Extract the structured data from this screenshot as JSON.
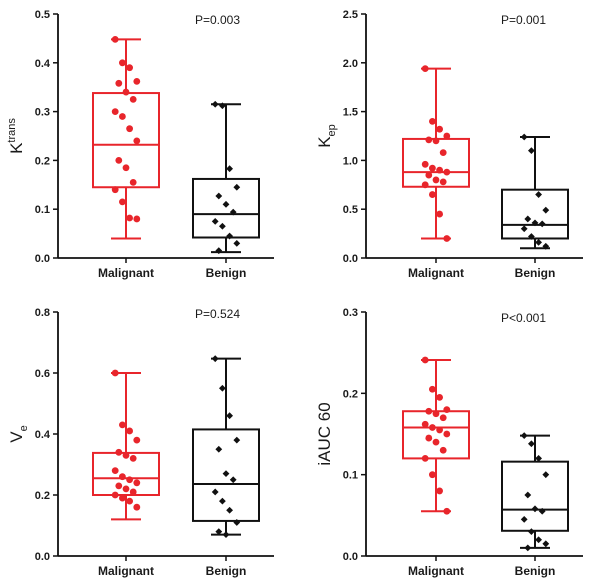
{
  "colors": {
    "malignant": "#e8252b",
    "benign": "#111111",
    "axis": "#111111"
  },
  "chart_data": [
    {
      "type": "box",
      "ylabel_main": "K",
      "ylabel_sup": "trans",
      "ylabel_sub": "",
      "pvalue": "P=0.003",
      "ylim": [
        0,
        0.5
      ],
      "yticks": [
        "0.0",
        "0.1",
        "0.2",
        "0.3",
        "0.4",
        "0.5"
      ],
      "ytick_values": [
        0,
        0.1,
        0.2,
        0.3,
        0.4,
        0.5
      ],
      "categories": [
        "Malignant",
        "Benign"
      ],
      "series": [
        {
          "name": "Malignant",
          "color": "malignant",
          "box": {
            "min": 0.04,
            "q1": 0.145,
            "median": 0.232,
            "q3": 0.338,
            "max": 0.448
          },
          "points": [
            0.448,
            0.4,
            0.39,
            0.362,
            0.358,
            0.34,
            0.325,
            0.3,
            0.29,
            0.265,
            0.24,
            0.2,
            0.185,
            0.155,
            0.14,
            0.115,
            0.082,
            0.08
          ]
        },
        {
          "name": "Benign",
          "color": "benign",
          "box": {
            "min": 0.012,
            "q1": 0.042,
            "median": 0.09,
            "q3": 0.162,
            "max": 0.315
          },
          "points": [
            0.315,
            0.312,
            0.183,
            0.145,
            0.127,
            0.11,
            0.094,
            0.075,
            0.065,
            0.045,
            0.03,
            0.015
          ]
        }
      ]
    },
    {
      "type": "box",
      "ylabel_main": "K",
      "ylabel_sup": "",
      "ylabel_sub": "ep",
      "pvalue": "P=0.001",
      "ylim": [
        0,
        2.5
      ],
      "yticks": [
        "0.0",
        "0.5",
        "1.0",
        "1.5",
        "2.0",
        "2.5"
      ],
      "ytick_values": [
        0,
        0.5,
        1.0,
        1.5,
        2.0,
        2.5
      ],
      "categories": [
        "Malignant",
        "Benign"
      ],
      "series": [
        {
          "name": "Malignant",
          "color": "malignant",
          "box": {
            "min": 0.2,
            "q1": 0.73,
            "median": 0.88,
            "q3": 1.22,
            "max": 1.94
          },
          "points": [
            1.94,
            1.4,
            1.32,
            1.25,
            1.21,
            1.2,
            1.08,
            0.96,
            0.92,
            0.9,
            0.88,
            0.85,
            0.8,
            0.78,
            0.75,
            0.65,
            0.45,
            0.2
          ]
        },
        {
          "name": "Benign",
          "color": "benign",
          "box": {
            "min": 0.1,
            "q1": 0.2,
            "median": 0.34,
            "q3": 0.7,
            "max": 1.24
          },
          "points": [
            1.24,
            1.1,
            0.65,
            0.49,
            0.4,
            0.36,
            0.35,
            0.3,
            0.22,
            0.16,
            0.12
          ]
        }
      ]
    },
    {
      "type": "box",
      "ylabel_main": "V",
      "ylabel_sup": "",
      "ylabel_sub": "e",
      "pvalue": "P=0.524",
      "ylim": [
        0,
        0.8
      ],
      "yticks": [
        "0.0",
        "0.2",
        "0.4",
        "0.6",
        "0.8"
      ],
      "ytick_values": [
        0,
        0.2,
        0.4,
        0.6,
        0.8
      ],
      "categories": [
        "Malignant",
        "Benign"
      ],
      "series": [
        {
          "name": "Malignant",
          "color": "malignant",
          "box": {
            "min": 0.12,
            "q1": 0.2,
            "median": 0.255,
            "q3": 0.338,
            "max": 0.6
          },
          "points": [
            0.6,
            0.43,
            0.41,
            0.38,
            0.34,
            0.33,
            0.32,
            0.28,
            0.26,
            0.25,
            0.24,
            0.23,
            0.22,
            0.21,
            0.2,
            0.19,
            0.18,
            0.16
          ]
        },
        {
          "name": "Benign",
          "color": "benign",
          "box": {
            "min": 0.07,
            "q1": 0.115,
            "median": 0.236,
            "q3": 0.415,
            "max": 0.647
          },
          "points": [
            0.647,
            0.55,
            0.46,
            0.38,
            0.35,
            0.27,
            0.25,
            0.21,
            0.18,
            0.15,
            0.11,
            0.08,
            0.07
          ]
        }
      ]
    },
    {
      "type": "box",
      "ylabel_main": "iAUC 60",
      "ylabel_sup": "",
      "ylabel_sub": "",
      "pvalue": "P<0.001",
      "ylim": [
        0,
        0.3
      ],
      "yticks": [
        "0.0",
        "0.1",
        "0.2",
        "0.3"
      ],
      "ytick_values": [
        0,
        0.1,
        0.2,
        0.3
      ],
      "categories": [
        "Malignant",
        "Benign"
      ],
      "series": [
        {
          "name": "Malignant",
          "color": "malignant",
          "box": {
            "min": 0.055,
            "q1": 0.12,
            "median": 0.158,
            "q3": 0.178,
            "max": 0.241
          },
          "points": [
            0.241,
            0.205,
            0.195,
            0.18,
            0.178,
            0.175,
            0.17,
            0.162,
            0.158,
            0.155,
            0.15,
            0.145,
            0.14,
            0.13,
            0.12,
            0.1,
            0.08,
            0.055
          ]
        },
        {
          "name": "Benign",
          "color": "benign",
          "box": {
            "min": 0.01,
            "q1": 0.031,
            "median": 0.057,
            "q3": 0.116,
            "max": 0.148
          },
          "points": [
            0.148,
            0.138,
            0.12,
            0.1,
            0.075,
            0.058,
            0.055,
            0.045,
            0.03,
            0.02,
            0.015,
            0.01
          ]
        }
      ]
    }
  ]
}
